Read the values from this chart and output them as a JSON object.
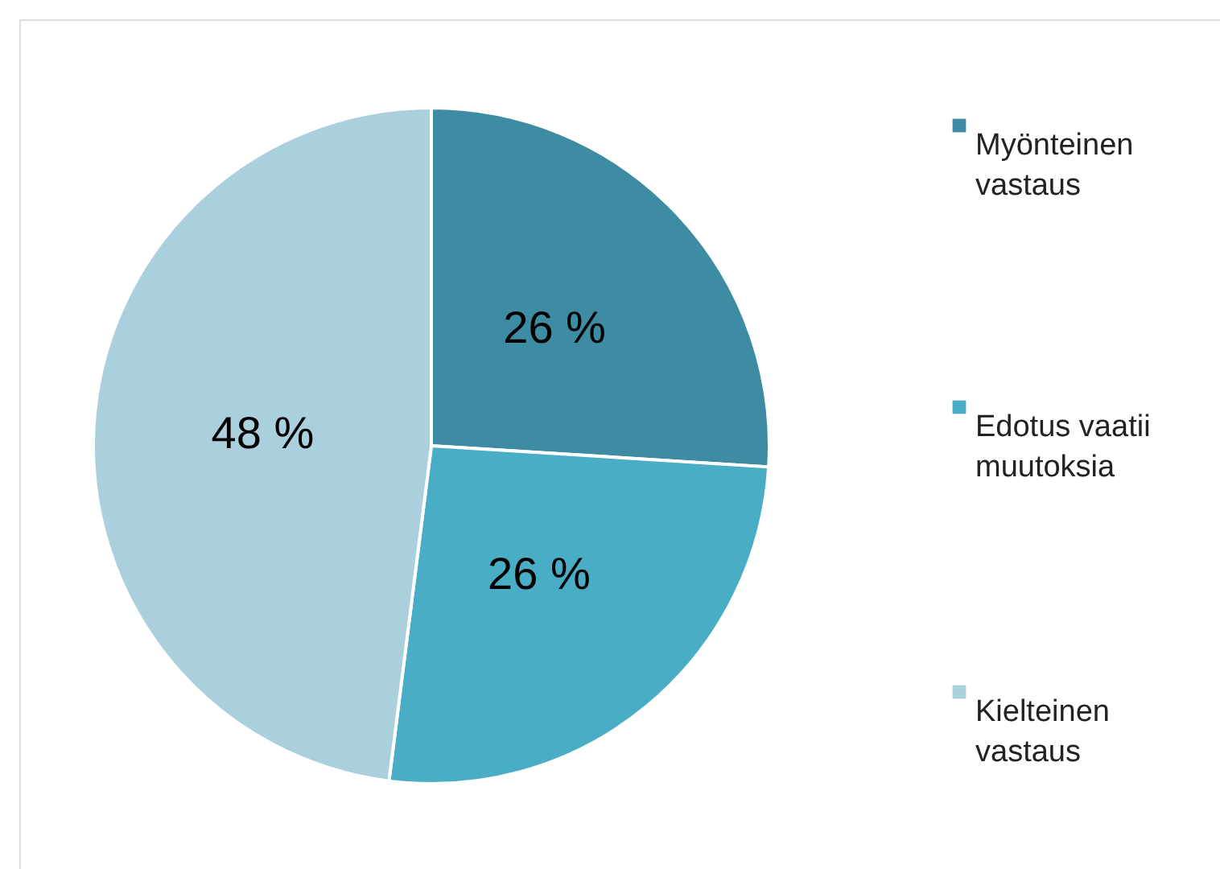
{
  "chart_data": {
    "type": "pie",
    "categories": [
      "Myönteinen vastaus",
      "Edotus vaatii muutoksia",
      "Kielteinen vastaus"
    ],
    "values": [
      26,
      26,
      48
    ],
    "colors": [
      "#3d8ca3",
      "#4aadc6",
      "#aacfdd"
    ],
    "value_labels": [
      "26 %",
      "26 %",
      "48 %"
    ],
    "legend": "right"
  }
}
